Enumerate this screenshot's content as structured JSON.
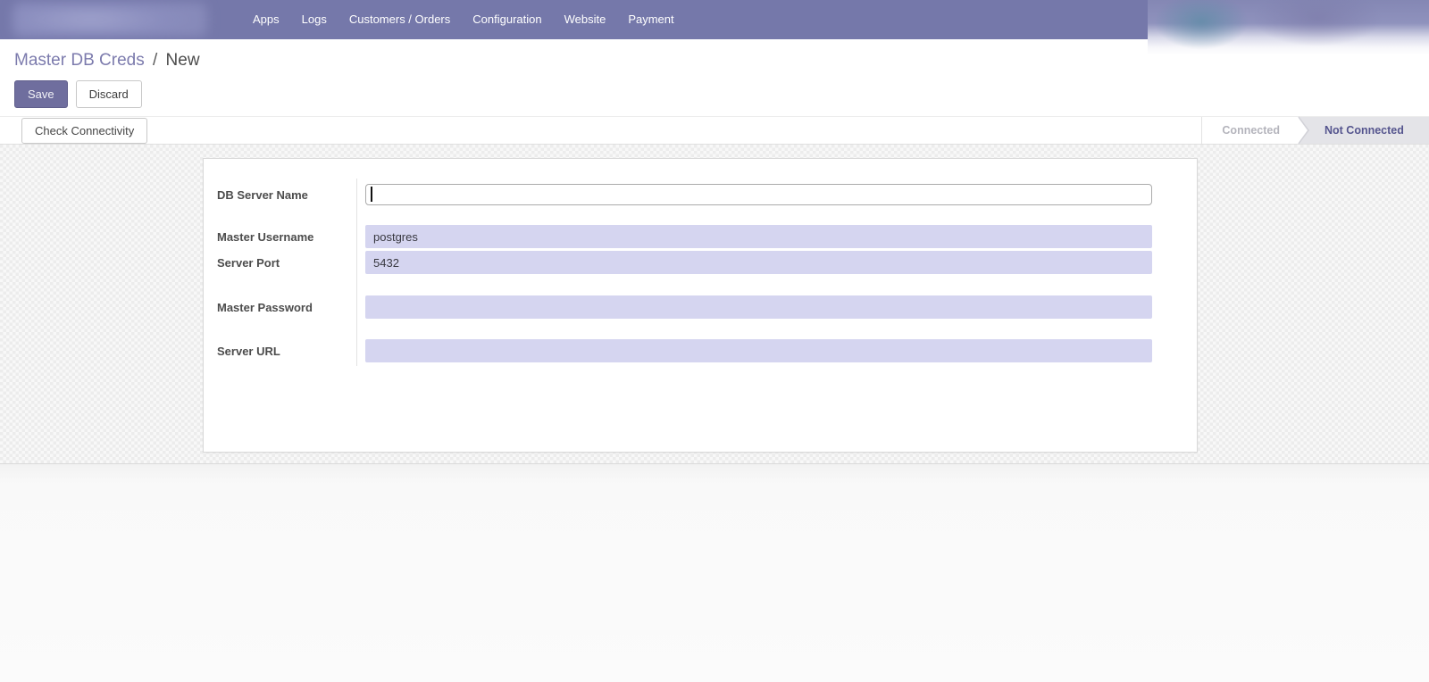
{
  "navbar": {
    "items": [
      {
        "label": "Apps"
      },
      {
        "label": "Logs"
      },
      {
        "label": "Customers / Orders"
      },
      {
        "label": "Configuration"
      },
      {
        "label": "Website"
      },
      {
        "label": "Payment"
      }
    ]
  },
  "breadcrumb": {
    "parent": "Master DB Creds",
    "separator": "/",
    "current": "New"
  },
  "buttons": {
    "save": "Save",
    "discard": "Discard",
    "check_connectivity": "Check Connectivity"
  },
  "statusbar": {
    "states": [
      {
        "label": "Connected",
        "active": false
      },
      {
        "label": "Not Connected",
        "active": true
      }
    ]
  },
  "form": {
    "fields": [
      {
        "label": "DB Server Name",
        "value": "",
        "required": false,
        "focused": true
      },
      {
        "label": "Master Username",
        "value": "postgres",
        "required": true,
        "focused": false
      },
      {
        "label": "Server Port",
        "value": "5432",
        "required": true,
        "focused": false
      },
      {
        "label": "Master Password",
        "value": "",
        "required": true,
        "focused": false
      },
      {
        "label": "Server URL",
        "value": "",
        "required": true,
        "focused": false
      }
    ]
  },
  "colors": {
    "navbar_bg": "#7578aa",
    "link_accent": "#7c7bad",
    "primary_button_bg": "#6f6e9e",
    "required_field_bg": "#d5d5f0",
    "status_active_text": "#55558e",
    "status_inactive_text": "#b4b4bc"
  }
}
